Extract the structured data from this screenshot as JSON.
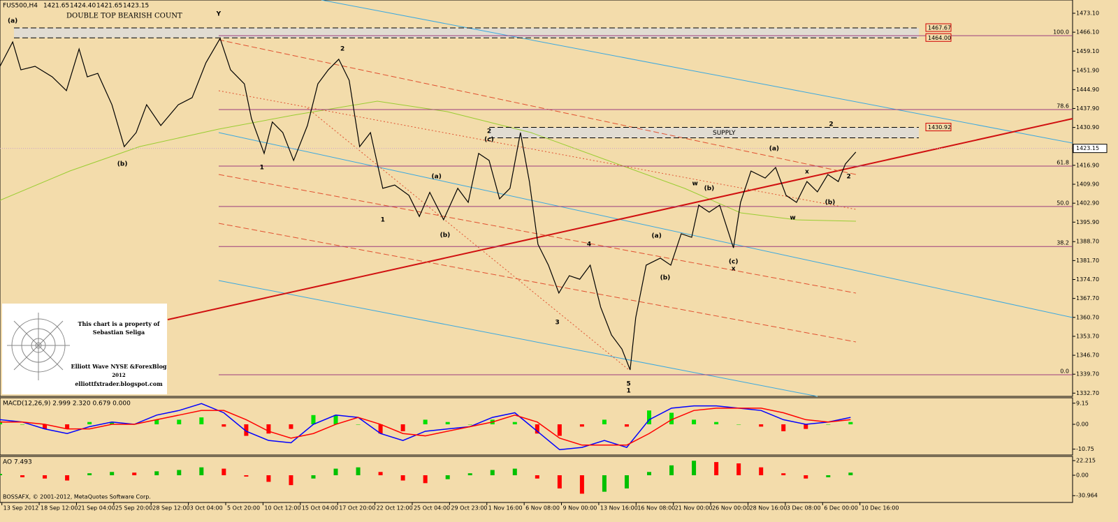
{
  "chart_data": [
    {
      "type": "line",
      "title": "FUS500,H4",
      "ohlc_labels": [
        "1421.65",
        "1424.40",
        "1421.65",
        "1423.15"
      ],
      "subtitle": "DOUBLE TOP BEARISH COUNT",
      "color": "#000000",
      "x": [
        0,
        3.4,
        5.6,
        9.4,
        14.0,
        17.8,
        21.2,
        23.4,
        26.2,
        30.0,
        33.3,
        36.5,
        39.3,
        43.1,
        47.8,
        51.5,
        55.2,
        59.0,
        61.8,
        65.5,
        67.4,
        70.8,
        73.0,
        75.8,
        78.7,
        82.4,
        85.2,
        88.0,
        90.8,
        93.6,
        96.4,
        99.3,
        102.6,
        105.8,
        109.6,
        112.4,
        115.2,
        118.9,
        122.7,
        125.5,
        128.3,
        131.1,
        133.9,
        136.7,
        139.5,
        141.9,
        144.2,
        147.0,
        149.8,
        152.6,
        155.4,
        158.2,
        161.0,
        163.9,
        166.7,
        168.9,
        170.4,
        173.2,
        177.0,
        179.8,
        182.6,
        185.4,
        187.3,
        190.1,
        192.9,
        196.6,
        198.5,
        201.3,
        205.1,
        207.9,
        210.7,
        213.5,
        216.3,
        219.1,
        221.9,
        224.7,
        226.6,
        229.4
      ],
      "values": [
        1453.5,
        1462.5,
        1452.2,
        1453.5,
        1449.6,
        1444.5,
        1459.9,
        1449.6,
        1450.9,
        1439.3,
        1423.8,
        1429.0,
        1439.3,
        1431.6,
        1439.3,
        1441.9,
        1454.8,
        1463.8,
        1452.2,
        1447.0,
        1434.2,
        1421.3,
        1432.9,
        1429.0,
        1418.7,
        1431.6,
        1447.0,
        1452.2,
        1456.1,
        1448.3,
        1423.8,
        1429.0,
        1408.4,
        1409.6,
        1405.8,
        1398.0,
        1406.9,
        1396.8,
        1408.4,
        1403.2,
        1421.3,
        1418.7,
        1404.5,
        1408.4,
        1429.0,
        1410.9,
        1387.7,
        1380.0,
        1369.7,
        1376.1,
        1374.8,
        1380.0,
        1364.5,
        1354.2,
        1349.0,
        1341.3,
        1360.6,
        1380.0,
        1382.6,
        1380.0,
        1391.6,
        1390.3,
        1402.2,
        1399.6,
        1402.2,
        1386.4,
        1403.2,
        1414.8,
        1412.2,
        1416.1,
        1405.8,
        1403.2,
        1410.9,
        1407.1,
        1413.5,
        1410.9,
        1417.4,
        1421.8
      ],
      "xlim": [
        0,
        287.5
      ],
      "xticks": [
        {
          "value": 0.5,
          "label": "13 Sep 2012"
        },
        {
          "value": 10.5,
          "label": "18 Sep 12:00"
        },
        {
          "value": 20.5,
          "label": "21 Sep 04:00"
        },
        {
          "value": 30.5,
          "label": "25 Sep 20:00"
        },
        {
          "value": 40.5,
          "label": "28 Sep 12:00"
        },
        {
          "value": 50.5,
          "label": "3 Oct 04:00"
        },
        {
          "value": 60.5,
          "label": "5 Oct 20:00"
        },
        {
          "value": 70.5,
          "label": "10 Oct 12:00"
        },
        {
          "value": 80.5,
          "label": "15 Oct 04:00"
        },
        {
          "value": 90.5,
          "label": "17 Oct 20:00"
        },
        {
          "value": 100.5,
          "label": "22 Oct 12:00"
        },
        {
          "value": 110.5,
          "label": "25 Oct 04:00"
        },
        {
          "value": 120.5,
          "label": "29 Oct 23:00"
        },
        {
          "value": 130.5,
          "label": "1 Nov 16:00"
        },
        {
          "value": 140.5,
          "label": "6 Nov 08:00"
        },
        {
          "value": 150.5,
          "label": "9 Nov 00:00"
        },
        {
          "value": 160.5,
          "label": "13 Nov 16:00"
        },
        {
          "value": 170.5,
          "label": "16 Nov 08:00"
        },
        {
          "value": 180.5,
          "label": "21 Nov 00:00"
        },
        {
          "value": 190.5,
          "label": "26 Nov 00:00"
        },
        {
          "value": 200.5,
          "label": "28 Nov 16:00"
        },
        {
          "value": 210.5,
          "label": "3 Dec 08:00"
        },
        {
          "value": 220.5,
          "label": "6 Dec 00:00"
        },
        {
          "value": 230.5,
          "label": "10 Dec 16:00"
        }
      ],
      "ylim": [
        1331.5,
        1478
      ],
      "yticks": [
        {
          "value": 1473.1,
          "label": "1473.10"
        },
        {
          "value": 1466.1,
          "label": "1466.10"
        },
        {
          "value": 1459.1,
          "label": "1459.10"
        },
        {
          "value": 1451.9,
          "label": "1451.90"
        },
        {
          "value": 1444.9,
          "label": "1444.90"
        },
        {
          "value": 1437.9,
          "label": "1437.90"
        },
        {
          "value": 1430.9,
          "label": "1430.90"
        },
        {
          "value": 1416.9,
          "label": "1416.90"
        },
        {
          "value": 1409.9,
          "label": "1409.90"
        },
        {
          "value": 1402.9,
          "label": "1402.90"
        },
        {
          "value": 1395.9,
          "label": "1395.90"
        },
        {
          "value": 1388.7,
          "label": "1388.70"
        },
        {
          "value": 1381.7,
          "label": "1381.70"
        },
        {
          "value": 1374.7,
          "label": "1374.70"
        },
        {
          "value": 1367.7,
          "label": "1367.70"
        },
        {
          "value": 1360.7,
          "label": "1360.70"
        },
        {
          "value": 1353.7,
          "label": "1353.70"
        },
        {
          "value": 1346.7,
          "label": "1346.70"
        },
        {
          "value": 1339.7,
          "label": "1339.70"
        },
        {
          "value": 1332.7,
          "label": "1332.70"
        }
      ],
      "last_price": {
        "value": 1423.15,
        "label": "1423.15"
      },
      "fib_color": "#9c3c7c",
      "fib_levels": [
        {
          "value": 1464.8,
          "label": "100.0"
        },
        {
          "value": 1437.5,
          "label": "78.6"
        },
        {
          "value": 1416.6,
          "label": "61.8"
        },
        {
          "value": 1401.7,
          "label": "50.0"
        },
        {
          "value": 1386.9,
          "label": "38.2"
        },
        {
          "value": 1339.5,
          "label": "0.0"
        }
      ],
      "price_boxes": [
        {
          "value": 1467.67,
          "label": "1467.67"
        },
        {
          "value": 1464.0,
          "label": "1464.00"
        },
        {
          "value": 1430.92,
          "label": "1430.92"
        }
      ],
      "zone_label": "SUPPLY",
      "annotations": [
        {
          "text": "Y",
          "x": 58.6,
          "y": 1472.8,
          "color": "#8b2500"
        },
        {
          "text": "(a)",
          "x": 3.4,
          "y": 1470.3,
          "color": "#000080"
        },
        {
          "text": "2",
          "x": 91.8,
          "y": 1459.9,
          "color": "#000080"
        },
        {
          "text": "2",
          "x": 131.1,
          "y": 1429.5,
          "color": "#000000"
        },
        {
          "text": "(c)",
          "x": 131.1,
          "y": 1426.4,
          "color": "#000080"
        },
        {
          "text": "2",
          "x": 222.8,
          "y": 1432.1,
          "color": "#000000"
        },
        {
          "text": "w",
          "x": 186.3,
          "y": 1410.2,
          "color": "#8b2500"
        },
        {
          "text": "x",
          "x": 196.6,
          "y": 1378.7,
          "color": "#8b2500"
        },
        {
          "text": "(a)",
          "x": 207.5,
          "y": 1423.1,
          "color": "#000080"
        },
        {
          "text": "(b)",
          "x": 190.1,
          "y": 1408.4,
          "color": "#000080"
        },
        {
          "text": "(c)",
          "x": 196.6,
          "y": 1381.3,
          "color": "#000080"
        },
        {
          "text": "4",
          "x": 157.9,
          "y": 1387.7,
          "color": "#000080"
        },
        {
          "text": "3",
          "x": 149.4,
          "y": 1358.8,
          "color": "#000080"
        },
        {
          "text": "5",
          "x": 168.5,
          "y": 1336.1,
          "color": "#000080"
        },
        {
          "text": "1",
          "x": 168.5,
          "y": 1333.6,
          "color": "#000000"
        },
        {
          "text": "1",
          "x": 70.2,
          "y": 1416.1,
          "color": "#000080"
        },
        {
          "text": "(b)",
          "x": 32.8,
          "y": 1417.4,
          "color": "#000080"
        },
        {
          "text": "1",
          "x": 102.6,
          "y": 1396.8,
          "color": "#000000"
        },
        {
          "text": "(a)",
          "x": 117.0,
          "y": 1412.7,
          "color": "#000080"
        },
        {
          "text": "(b)",
          "x": 119.3,
          "y": 1391.1,
          "color": "#000080"
        },
        {
          "text": "(a)",
          "x": 176.0,
          "y": 1390.8,
          "color": "#000080"
        },
        {
          "text": "(b)",
          "x": 178.3,
          "y": 1375.3,
          "color": "#000080"
        },
        {
          "text": "(b)",
          "x": 222.5,
          "y": 1403.2,
          "color": "#000080"
        },
        {
          "text": "w",
          "x": 212.5,
          "y": 1397.5,
          "color": "#8b2500"
        },
        {
          "text": "x",
          "x": 216.3,
          "y": 1414.6,
          "color": "#8b2500"
        },
        {
          "text": "2",
          "x": 227.5,
          "y": 1412.7,
          "color": "#8b2500"
        }
      ],
      "credit": [
        "This chart is a property of",
        "Sebastian Seliga",
        "Elliott Wave NYSE &ForexBlog",
        "2012",
        "elliottfxtrader.blogspot.com"
      ],
      "footer": "BOSSAFX, © 2001-2012, MetaQuotes Software Corp."
    },
    {
      "type": "line",
      "title": "MACD(12,26,9) 2.999 2.320 0.679 0.000",
      "x": [
        0,
        6,
        12,
        18,
        24,
        30,
        36,
        42,
        48,
        54,
        60,
        66,
        72,
        78,
        84,
        90,
        96,
        102,
        108,
        114,
        120,
        126,
        132,
        138,
        144,
        150,
        156,
        162,
        168,
        174,
        180,
        186,
        192,
        198,
        204,
        210,
        216,
        222,
        228
      ],
      "series": [
        {
          "color": "#0000ff",
          "values": [
            2,
            1,
            -2,
            -4,
            -1,
            1,
            0,
            4,
            6,
            9,
            5,
            -3,
            -7,
            -8,
            0,
            4,
            3,
            -4,
            -7,
            -3,
            -2,
            -1,
            3,
            5,
            -3,
            -11,
            -10,
            -7,
            -10,
            2,
            7,
            8,
            8,
            7,
            6,
            2,
            0,
            1,
            3
          ]
        },
        {
          "color": "#ff0000",
          "values": [
            1,
            1,
            0,
            -2,
            -2,
            0,
            0,
            2,
            4,
            6,
            6,
            2,
            -3,
            -6,
            -4,
            0,
            3,
            0,
            -4,
            -5,
            -3,
            -1,
            1,
            4,
            1,
            -6,
            -9,
            -9,
            -9,
            -4,
            2,
            6,
            7,
            7,
            7,
            5,
            2,
            1,
            2
          ]
        },
        {
          "kind": "bar",
          "up_color": "#00e000",
          "down_color": "#ff0000",
          "values": [
            1,
            0,
            -2,
            -2,
            1,
            1,
            0,
            2,
            2,
            3,
            -1,
            -5,
            -4,
            -2,
            4,
            4,
            0,
            -4,
            -3,
            2,
            1,
            0,
            2,
            1,
            -4,
            -5,
            -1,
            2,
            -1,
            6,
            5,
            2,
            1,
            0,
            -1,
            -3,
            -2,
            0,
            1
          ]
        }
      ],
      "xlim": [
        0,
        287.5
      ],
      "ylim": [
        -13.3,
        11.5
      ],
      "yticks": [
        9.15,
        {
          "value": 0,
          "label": "0.00"
        },
        -10.75
      ]
    },
    {
      "type": "bar",
      "title": "AO 7.493",
      "x": [
        0,
        6,
        12,
        18,
        24,
        30,
        36,
        42,
        48,
        54,
        60,
        66,
        72,
        78,
        84,
        90,
        96,
        102,
        108,
        114,
        120,
        126,
        132,
        138,
        144,
        150,
        156,
        162,
        168,
        174,
        180,
        186,
        192,
        198,
        204,
        210,
        216,
        222,
        228
      ],
      "values": [
        2,
        -3,
        -5,
        -8,
        3,
        5,
        4,
        6,
        8,
        12,
        10,
        -2,
        -10,
        -15,
        -5,
        10,
        12,
        5,
        -8,
        -12,
        -6,
        3,
        8,
        10,
        -5,
        -20,
        -28,
        -25,
        -20,
        5,
        15,
        22,
        20,
        18,
        12,
        3,
        -5,
        -3,
        4
      ],
      "up_color": "#00c000",
      "down_color": "#ff0000",
      "xlim": [
        0,
        287.5
      ],
      "ylim": [
        -41.3,
        28.6
      ],
      "yticks": [
        22.215,
        {
          "value": 0,
          "label": "0.00"
        },
        -30.964
      ]
    }
  ]
}
